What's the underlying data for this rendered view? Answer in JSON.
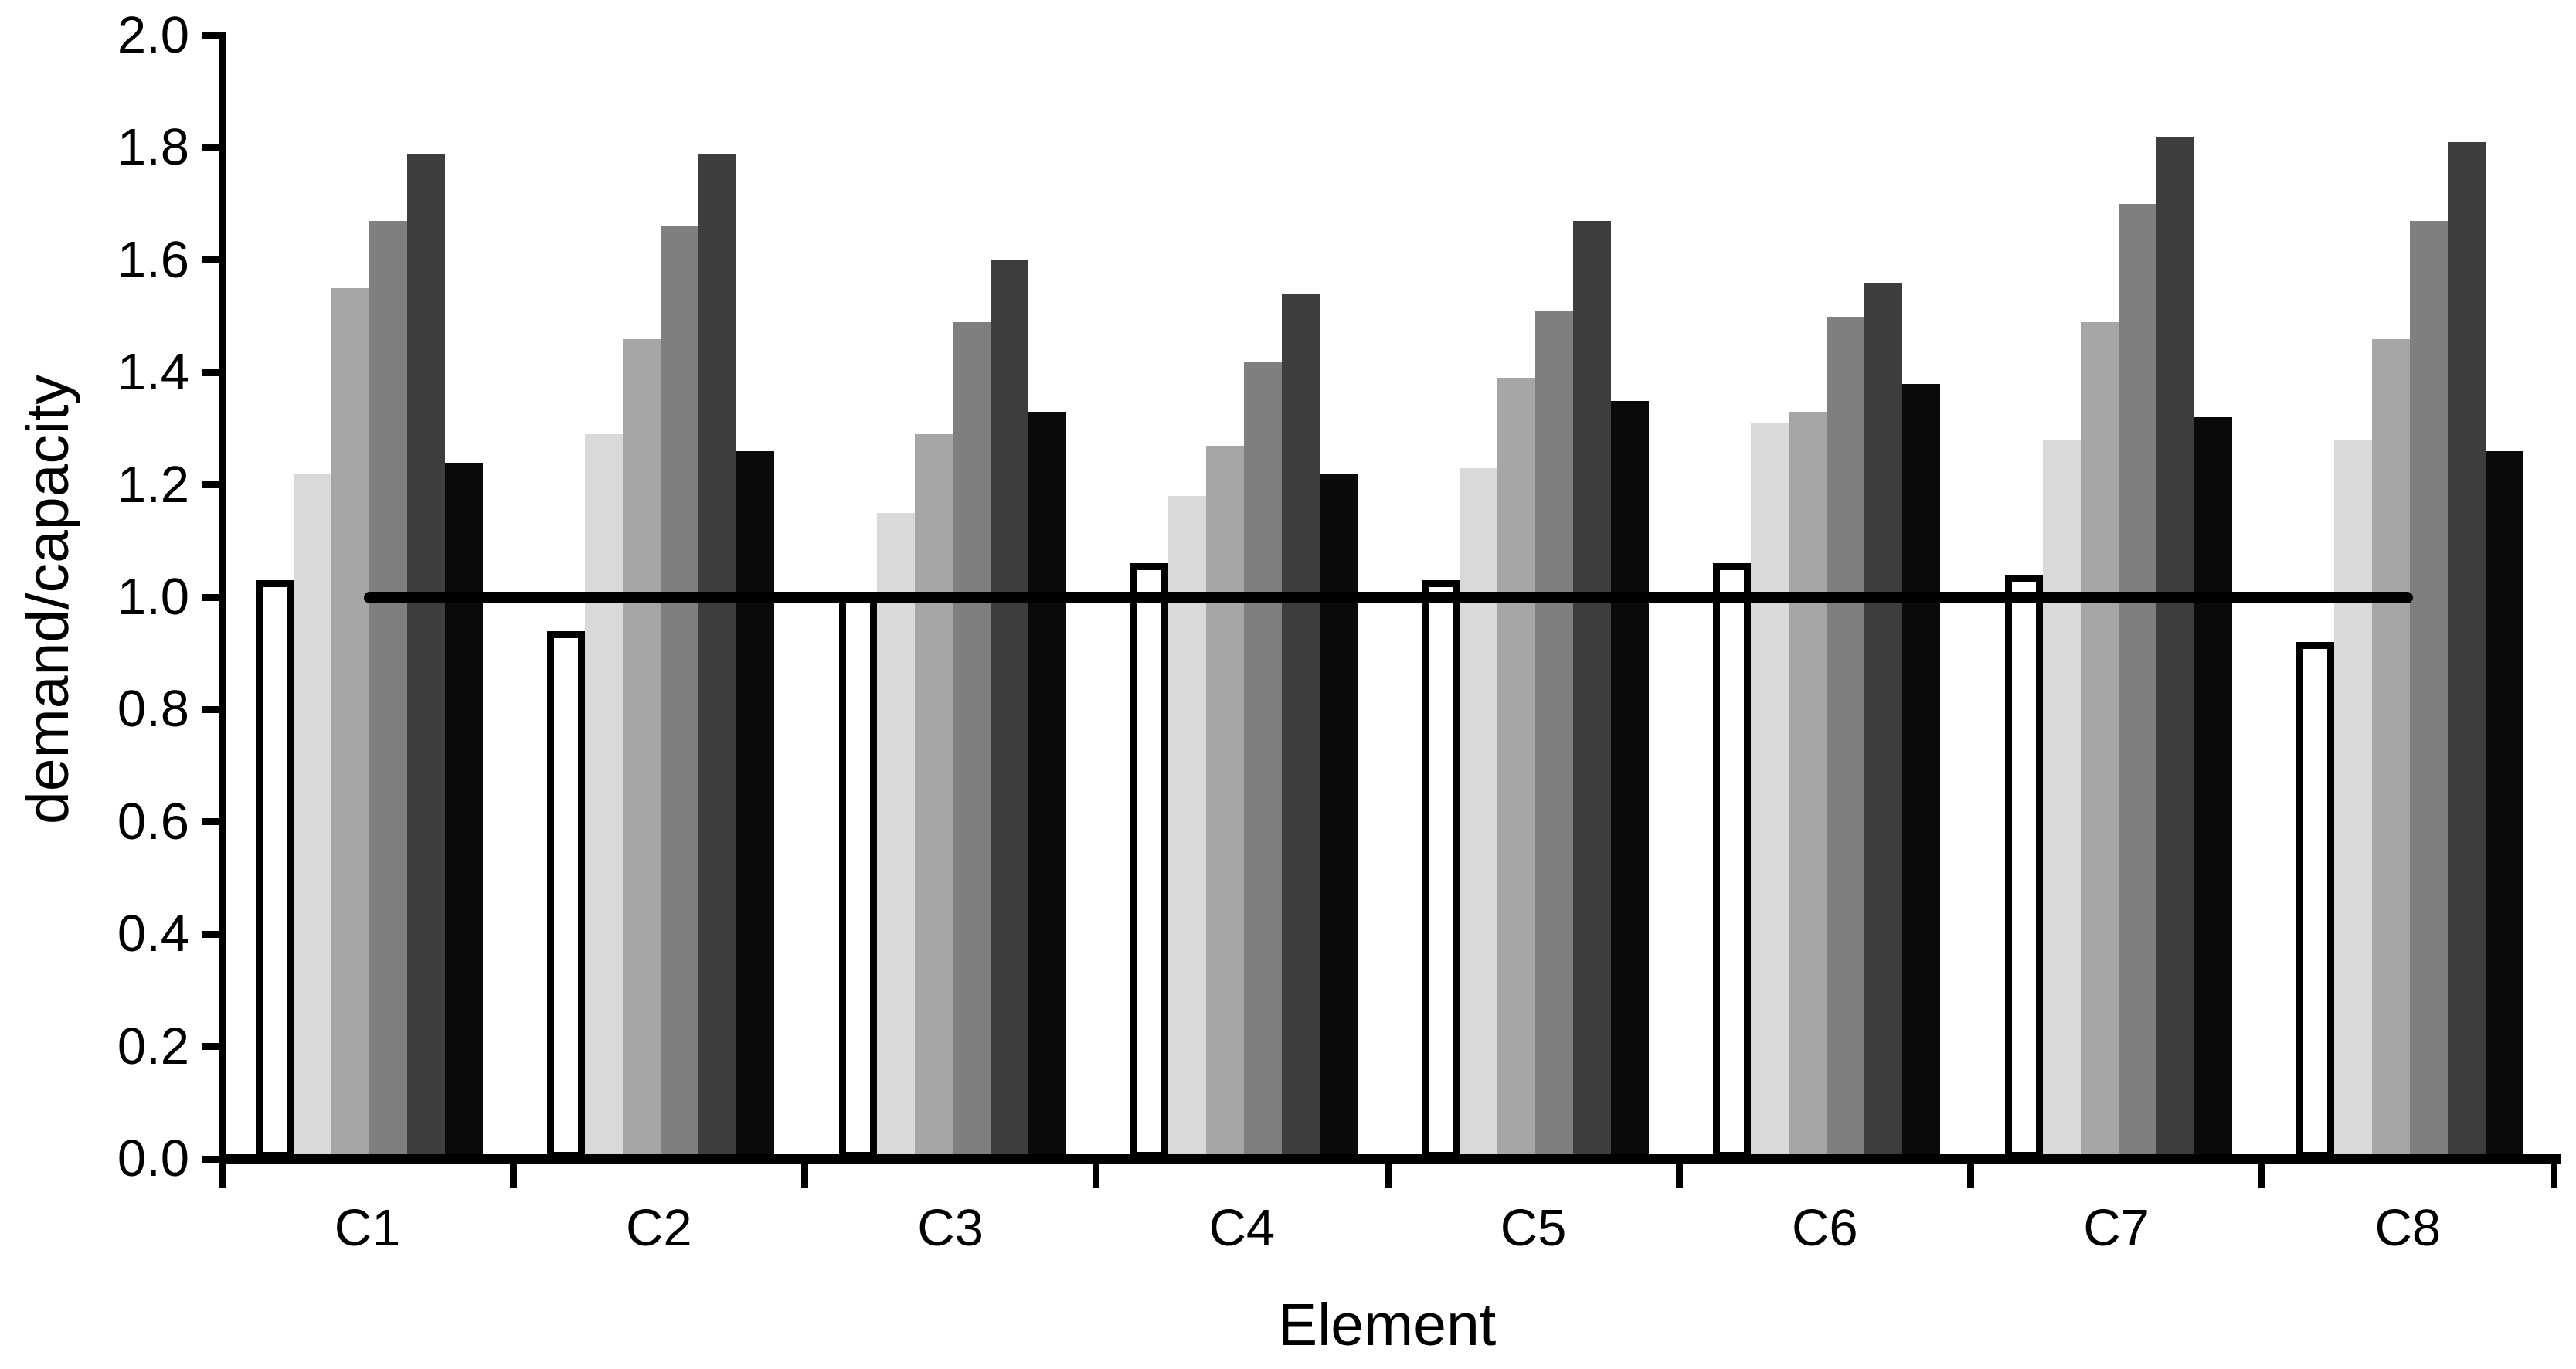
{
  "chart_data": {
    "type": "bar",
    "title": "",
    "xlabel": "Element",
    "ylabel": "demand/capacity",
    "categories": [
      "C1",
      "C2",
      "C3",
      "C4",
      "C5",
      "C6",
      "C7",
      "C8"
    ],
    "series": [
      {
        "name": "white",
        "color": "#ffffff",
        "outlined": true,
        "values": [
          1.03,
          0.94,
          1.01,
          1.06,
          1.03,
          1.06,
          1.04,
          0.92
        ]
      },
      {
        "name": "light-gray",
        "color": "#d9d9d9",
        "outlined": false,
        "values": [
          1.22,
          1.29,
          1.15,
          1.18,
          1.23,
          1.31,
          1.28,
          1.28
        ]
      },
      {
        "name": "medium-gray",
        "color": "#a6a6a6",
        "outlined": false,
        "values": [
          1.55,
          1.46,
          1.29,
          1.27,
          1.39,
          1.33,
          1.49,
          1.46
        ]
      },
      {
        "name": "dark-gray",
        "color": "#7f7f7f",
        "outlined": false,
        "values": [
          1.67,
          1.66,
          1.49,
          1.42,
          1.51,
          1.5,
          1.7,
          1.67
        ]
      },
      {
        "name": "charcoal",
        "color": "#3d3d3d",
        "outlined": false,
        "values": [
          1.79,
          1.79,
          1.6,
          1.54,
          1.67,
          1.56,
          1.82,
          1.81
        ]
      },
      {
        "name": "black",
        "color": "#0a0a0a",
        "outlined": false,
        "values": [
          1.24,
          1.26,
          1.33,
          1.22,
          1.35,
          1.38,
          1.32,
          1.26
        ]
      }
    ],
    "ylim": [
      0.0,
      2.0
    ],
    "ytick_labels": [
      "0.0",
      "0.2",
      "0.4",
      "0.6",
      "0.8",
      "1.0",
      "1.2",
      "1.4",
      "1.6",
      "1.8",
      "2.0"
    ],
    "reference_line": {
      "value": 1.0,
      "color": "#000000"
    },
    "grid": "off",
    "legend": "none",
    "axis_color": "#000000",
    "background_color": "#ffffff"
  }
}
